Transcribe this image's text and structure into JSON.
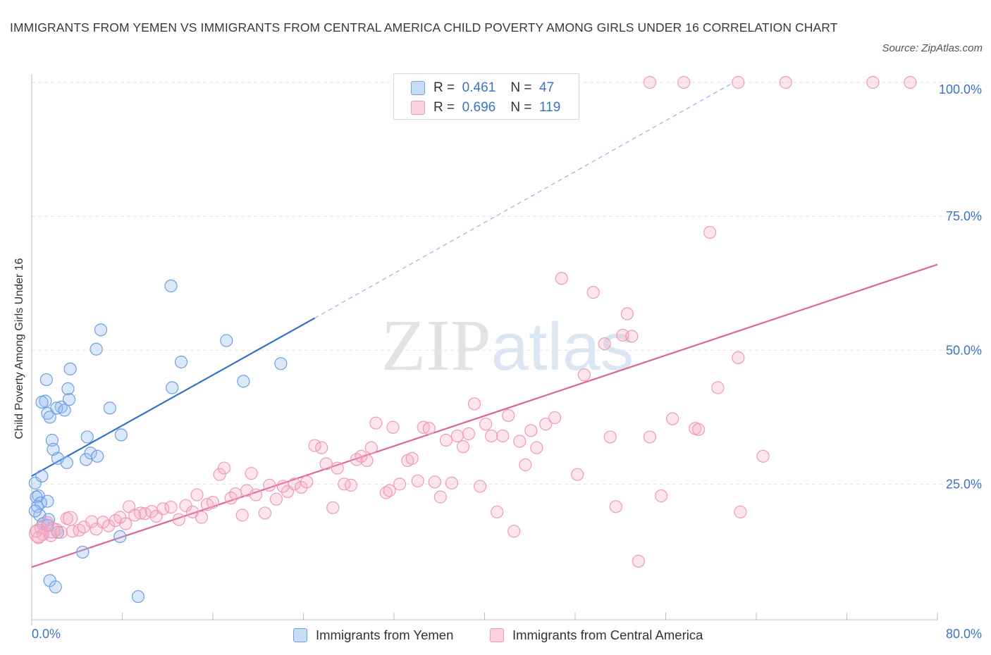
{
  "title": "IMMIGRANTS FROM YEMEN VS IMMIGRANTS FROM CENTRAL AMERICA CHILD POVERTY AMONG GIRLS UNDER 16 CORRELATION CHART",
  "source": "Source: ZipAtlas.com",
  "watermark": "ZIPatlas",
  "colors": {
    "yemen": "#4f8fdc",
    "central_america": "#e0648e",
    "axis_label": "#3b73c4"
  },
  "legend": {
    "yemen": {
      "r_label": "R =",
      "r": "0.461",
      "n_label": "N =",
      "n": "47"
    },
    "central_america": {
      "r_label": "R =",
      "r": "0.696",
      "n_label": "N =",
      "n": "119"
    }
  },
  "chart_data": {
    "type": "scatter",
    "title": "IMMIGRANTS FROM YEMEN VS IMMIGRANTS FROM CENTRAL AMERICA CHILD POVERTY AMONG GIRLS UNDER 16 CORRELATION CHART",
    "xlabel": "",
    "ylabel": "Child Poverty Among Girls Under 16",
    "xlim": [
      0,
      80
    ],
    "ylim": [
      0,
      100
    ],
    "x_tick_labels": [
      "0.0%",
      "80.0%"
    ],
    "y_tick_labels": [
      "25.0%",
      "50.0%",
      "75.0%",
      "100.0%"
    ],
    "y_ticks": [
      25,
      50,
      75,
      100
    ],
    "grid": true,
    "legend_position": "top-center",
    "series": [
      {
        "name": "Immigrants from Yemen",
        "color": "#4f8fdc",
        "points": [
          [
            0.3,
            25.2
          ],
          [
            0.6,
            22.8
          ],
          [
            0.4,
            22.6
          ],
          [
            0.8,
            21.5
          ],
          [
            0.5,
            20.8
          ],
          [
            1.4,
            21.8
          ],
          [
            0.7,
            19.2
          ],
          [
            0.3,
            20.0
          ],
          [
            1.0,
            17.6
          ],
          [
            1.5,
            18.4
          ],
          [
            0.9,
            26.5
          ],
          [
            1.2,
            40.5
          ],
          [
            1.3,
            44.5
          ],
          [
            0.9,
            40.3
          ],
          [
            1.4,
            38.2
          ],
          [
            1.6,
            37.5
          ],
          [
            1.8,
            33.2
          ],
          [
            1.9,
            31.5
          ],
          [
            2.3,
            29.8
          ],
          [
            2.6,
            39.4
          ],
          [
            2.2,
            39.2
          ],
          [
            2.9,
            38.8
          ],
          [
            3.2,
            42.8
          ],
          [
            3.4,
            46.5
          ],
          [
            3.3,
            40.8
          ],
          [
            3.1,
            29.0
          ],
          [
            4.9,
            33.8
          ],
          [
            4.8,
            29.6
          ],
          [
            5.2,
            30.8
          ],
          [
            5.8,
            30.2
          ],
          [
            5.7,
            50.2
          ],
          [
            6.1,
            53.8
          ],
          [
            6.9,
            39.2
          ],
          [
            7.9,
            34.2
          ],
          [
            12.3,
            62.0
          ],
          [
            12.4,
            43.0
          ],
          [
            13.2,
            47.8
          ],
          [
            17.2,
            51.8
          ],
          [
            18.7,
            44.2
          ],
          [
            22.0,
            47.5
          ],
          [
            1.6,
            7.0
          ],
          [
            2.1,
            5.8
          ],
          [
            4.5,
            12.3
          ],
          [
            7.8,
            15.2
          ],
          [
            9.4,
            4.0
          ],
          [
            2.3,
            16.0
          ],
          [
            1.4,
            17.3
          ]
        ]
      },
      {
        "name": "Immigrants from Central America",
        "color": "#e0648e",
        "points": [
          [
            0.4,
            16.2
          ],
          [
            0.6,
            15.0
          ],
          [
            0.8,
            16.8
          ],
          [
            1.0,
            15.6
          ],
          [
            1.4,
            17.8
          ],
          [
            1.7,
            15.4
          ],
          [
            2.2,
            16.5
          ],
          [
            2.6,
            16.0
          ],
          [
            3.1,
            18.6
          ],
          [
            3.6,
            16.2
          ],
          [
            4.2,
            16.4
          ],
          [
            4.6,
            17.0
          ],
          [
            5.3,
            18.0
          ],
          [
            5.7,
            16.6
          ],
          [
            6.3,
            17.9
          ],
          [
            6.8,
            17.2
          ],
          [
            7.4,
            18.2
          ],
          [
            7.8,
            18.8
          ],
          [
            8.3,
            17.6
          ],
          [
            8.6,
            20.8
          ],
          [
            9.1,
            19.2
          ],
          [
            9.6,
            19.6
          ],
          [
            10.0,
            19.5
          ],
          [
            10.6,
            19.9
          ],
          [
            11.0,
            19.0
          ],
          [
            11.6,
            20.4
          ],
          [
            12.3,
            20.7
          ],
          [
            13.0,
            18.4
          ],
          [
            13.6,
            21.0
          ],
          [
            14.2,
            19.8
          ],
          [
            14.6,
            23.0
          ],
          [
            15.0,
            18.8
          ],
          [
            15.5,
            21.2
          ],
          [
            16.0,
            21.6
          ],
          [
            16.6,
            26.8
          ],
          [
            17.0,
            28.0
          ],
          [
            17.6,
            22.4
          ],
          [
            18.0,
            23.2
          ],
          [
            18.6,
            19.2
          ],
          [
            19.0,
            23.8
          ],
          [
            19.4,
            27.0
          ],
          [
            19.8,
            23.0
          ],
          [
            20.6,
            19.6
          ],
          [
            21.0,
            24.8
          ],
          [
            21.6,
            22.2
          ],
          [
            22.2,
            24.6
          ],
          [
            22.6,
            23.6
          ],
          [
            23.2,
            25.0
          ],
          [
            23.8,
            24.4
          ],
          [
            24.3,
            25.4
          ],
          [
            25.0,
            32.2
          ],
          [
            25.6,
            31.8
          ],
          [
            26.0,
            28.8
          ],
          [
            26.6,
            20.6
          ],
          [
            27.0,
            28.0
          ],
          [
            27.6,
            25.0
          ],
          [
            28.2,
            24.8
          ],
          [
            28.7,
            29.6
          ],
          [
            29.1,
            30.2
          ],
          [
            29.6,
            29.4
          ],
          [
            30.0,
            31.8
          ],
          [
            30.4,
            36.4
          ],
          [
            31.3,
            23.4
          ],
          [
            31.6,
            23.8
          ],
          [
            31.9,
            35.6
          ],
          [
            32.5,
            25.0
          ],
          [
            33.2,
            29.4
          ],
          [
            33.6,
            29.8
          ],
          [
            34.1,
            25.6
          ],
          [
            34.6,
            35.6
          ],
          [
            35.1,
            35.4
          ],
          [
            35.6,
            25.4
          ],
          [
            36.1,
            22.6
          ],
          [
            36.6,
            33.2
          ],
          [
            37.1,
            25.2
          ],
          [
            37.6,
            34.0
          ],
          [
            38.1,
            32.0
          ],
          [
            38.6,
            34.4
          ],
          [
            39.1,
            40.0
          ],
          [
            39.6,
            24.6
          ],
          [
            40.1,
            36.2
          ],
          [
            40.6,
            34.0
          ],
          [
            41.1,
            19.8
          ],
          [
            41.6,
            34.0
          ],
          [
            42.1,
            37.8
          ],
          [
            42.6,
            16.2
          ],
          [
            43.1,
            33.0
          ],
          [
            43.6,
            28.6
          ],
          [
            44.1,
            35.0
          ],
          [
            44.6,
            31.8
          ],
          [
            45.4,
            36.2
          ],
          [
            46.2,
            37.4
          ],
          [
            46.8,
            63.4
          ],
          [
            48.2,
            26.8
          ],
          [
            48.8,
            45.4
          ],
          [
            49.6,
            60.8
          ],
          [
            50.6,
            51.2
          ],
          [
            51.1,
            33.8
          ],
          [
            51.6,
            20.8
          ],
          [
            52.2,
            52.8
          ],
          [
            52.6,
            56.8
          ],
          [
            53.6,
            10.6
          ],
          [
            54.6,
            33.8
          ],
          [
            55.6,
            22.8
          ],
          [
            56.6,
            37.2
          ],
          [
            58.6,
            35.4
          ],
          [
            58.9,
            35.2
          ],
          [
            59.9,
            72.0
          ],
          [
            60.6,
            43.0
          ],
          [
            62.4,
            48.6
          ],
          [
            62.6,
            19.8
          ],
          [
            64.6,
            30.2
          ],
          [
            54.6,
            100
          ],
          [
            57.6,
            100
          ],
          [
            62.4,
            100
          ],
          [
            66.6,
            100
          ],
          [
            74.3,
            100
          ],
          [
            77.6,
            100
          ],
          [
            53.0,
            52.6
          ]
        ]
      }
    ],
    "trend_lines": [
      {
        "series": "Immigrants from Yemen",
        "x": [
          0,
          25
        ],
        "y": [
          26.5,
          56.0
        ],
        "dashed_extension_x": [
          25,
          62
        ],
        "dashed_extension_y": [
          56.0,
          100
        ]
      },
      {
        "series": "Immigrants from Central America",
        "x": [
          0,
          80
        ],
        "y": [
          9.5,
          66.0
        ]
      }
    ]
  }
}
